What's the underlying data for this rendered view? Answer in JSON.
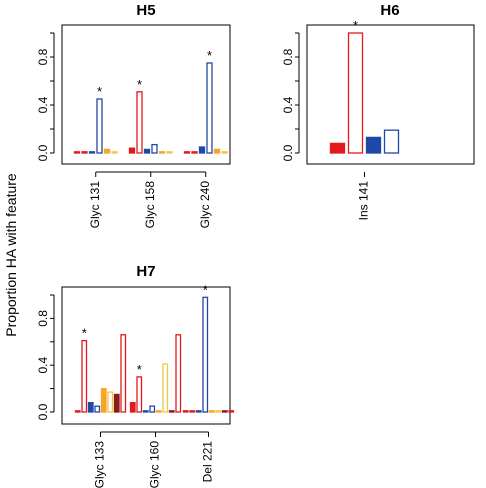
{
  "figure": {
    "ylabel": "Proportion HA with feature"
  },
  "colors": {
    "red": "#E31A1C",
    "blue": "#1F49A8",
    "orange": "#F6A524",
    "darkred": "#8B1A1A",
    "yellow": "#F2C744"
  },
  "chart_data": [
    {
      "type": "bar",
      "title": "H5",
      "ylim": [
        0,
        1
      ],
      "yticks": [
        "0.0",
        "0.4",
        "0.8"
      ],
      "categories": [
        "Glyc 131",
        "Glyc 158",
        "Glyc 240"
      ],
      "groups": [
        {
          "category": "Glyc 131",
          "star_on_bar": 3,
          "bars": [
            {
              "value": 0.005,
              "color": "red",
              "fill": true
            },
            {
              "value": 0.005,
              "color": "red",
              "fill": false
            },
            {
              "value": 0.005,
              "color": "blue",
              "fill": true
            },
            {
              "value": 0.45,
              "color": "blue",
              "fill": false
            },
            {
              "value": 0.03,
              "color": "orange",
              "fill": true
            },
            {
              "value": 0.005,
              "color": "yellow",
              "fill": false
            }
          ]
        },
        {
          "category": "Glyc 158",
          "star_on_bar": 1,
          "bars": [
            {
              "value": 0.04,
              "color": "red",
              "fill": true
            },
            {
              "value": 0.51,
              "color": "red",
              "fill": false
            },
            {
              "value": 0.03,
              "color": "blue",
              "fill": true
            },
            {
              "value": 0.07,
              "color": "blue",
              "fill": false
            },
            {
              "value": 0.005,
              "color": "orange",
              "fill": true
            },
            {
              "value": 0.005,
              "color": "yellow",
              "fill": false
            }
          ]
        },
        {
          "category": "Glyc 240",
          "star_on_bar": 3,
          "bars": [
            {
              "value": 0.01,
              "color": "red",
              "fill": true
            },
            {
              "value": 0.01,
              "color": "red",
              "fill": false
            },
            {
              "value": 0.05,
              "color": "blue",
              "fill": true
            },
            {
              "value": 0.75,
              "color": "blue",
              "fill": false
            },
            {
              "value": 0.03,
              "color": "orange",
              "fill": true
            },
            {
              "value": 0.005,
              "color": "yellow",
              "fill": false
            }
          ]
        }
      ]
    },
    {
      "type": "bar",
      "title": "H6",
      "ylim": [
        0,
        1
      ],
      "yticks": [
        "0.0",
        "0.4",
        "0.8"
      ],
      "categories": [
        "Ins 141"
      ],
      "groups": [
        {
          "category": "Ins 141",
          "star_on_bar": 1,
          "bars": [
            {
              "value": 0.08,
              "color": "red",
              "fill": true
            },
            {
              "value": 1.0,
              "color": "red",
              "fill": false
            },
            {
              "value": 0.13,
              "color": "blue",
              "fill": true
            },
            {
              "value": 0.19,
              "color": "blue",
              "fill": false
            }
          ]
        }
      ]
    },
    {
      "type": "bar",
      "title": "H7",
      "ylim": [
        0,
        1
      ],
      "yticks": [
        "0.0",
        "0.4",
        "0.8"
      ],
      "categories": [
        "Glyc 133",
        "Glyc 160",
        "Del 221"
      ],
      "groups": [
        {
          "category": "Glyc 133",
          "star_on_bar": 1,
          "bars": [
            {
              "value": 0.005,
              "color": "red",
              "fill": true
            },
            {
              "value": 0.61,
              "color": "red",
              "fill": false
            },
            {
              "value": 0.08,
              "color": "blue",
              "fill": true
            },
            {
              "value": 0.05,
              "color": "blue",
              "fill": false
            },
            {
              "value": 0.2,
              "color": "orange",
              "fill": true
            },
            {
              "value": 0.17,
              "color": "yellow",
              "fill": false
            },
            {
              "value": 0.15,
              "color": "darkred",
              "fill": true
            },
            {
              "value": 0.66,
              "color": "red",
              "fill": false
            }
          ]
        },
        {
          "category": "Glyc 160",
          "star_on_bar": 1,
          "bars": [
            {
              "value": 0.08,
              "color": "red",
              "fill": true
            },
            {
              "value": 0.3,
              "color": "red",
              "fill": false
            },
            {
              "value": 0.005,
              "color": "blue",
              "fill": true
            },
            {
              "value": 0.05,
              "color": "blue",
              "fill": false
            },
            {
              "value": 0.005,
              "color": "orange",
              "fill": true
            },
            {
              "value": 0.41,
              "color": "yellow",
              "fill": false
            },
            {
              "value": 0.005,
              "color": "darkred",
              "fill": true
            },
            {
              "value": 0.66,
              "color": "red",
              "fill": false
            }
          ]
        },
        {
          "category": "Del 221",
          "star_on_bar": 3,
          "bars": [
            {
              "value": 0.005,
              "color": "red",
              "fill": true
            },
            {
              "value": 0.005,
              "color": "red",
              "fill": false
            },
            {
              "value": 0.005,
              "color": "blue",
              "fill": true
            },
            {
              "value": 0.98,
              "color": "blue",
              "fill": false
            },
            {
              "value": 0.005,
              "color": "orange",
              "fill": true
            },
            {
              "value": 0.005,
              "color": "yellow",
              "fill": false
            },
            {
              "value": 0.005,
              "color": "darkred",
              "fill": true
            },
            {
              "value": 0.005,
              "color": "red",
              "fill": false
            }
          ]
        }
      ]
    }
  ]
}
